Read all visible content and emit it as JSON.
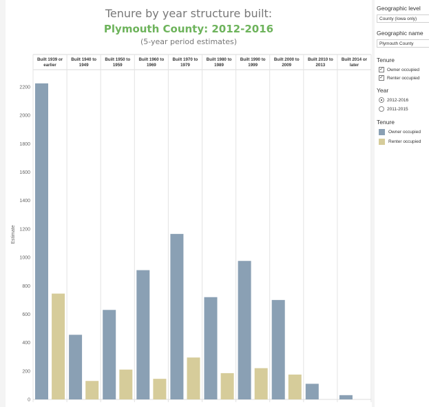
{
  "titles": {
    "main": "Tenure by year structure built:",
    "county": "Plymouth County: 2012-2016",
    "note": "(5-year period estimates)"
  },
  "chart_data": {
    "type": "bar",
    "categories": [
      [
        "Built 1939 or",
        "earlier"
      ],
      [
        "Built 1940 to",
        "1949"
      ],
      [
        "Built 1950 to",
        "1959"
      ],
      [
        "Built 1960 to",
        "1969"
      ],
      [
        "Built 1970 to",
        "1979"
      ],
      [
        "Built 1980 to",
        "1989"
      ],
      [
        "Built 1990 to",
        "1999"
      ],
      [
        "Built 2000 to",
        "2009"
      ],
      [
        "Built 2010 to",
        "2013"
      ],
      [
        "Built 2014 or",
        "later"
      ]
    ],
    "series": [
      {
        "name": "Owner occupied",
        "color": "#8aa0b4",
        "values": [
          2225,
          455,
          630,
          910,
          1165,
          720,
          975,
          700,
          110,
          30
        ]
      },
      {
        "name": "Renter occupied",
        "color": "#d6cc9a",
        "values": [
          745,
          130,
          210,
          145,
          295,
          185,
          220,
          175,
          0,
          0
        ]
      }
    ],
    "ylabel": "Estimate",
    "ylim": [
      0,
      2300
    ],
    "yticks": [
      0,
      200,
      400,
      600,
      800,
      1000,
      1200,
      1400,
      1600,
      1800,
      2000,
      2200
    ],
    "grid": false
  },
  "filters": {
    "geo_level_label": "Geographic level",
    "geo_level_value": "County (Iowa only)",
    "geo_name_label": "Geographic name",
    "geo_name_value": "Plymouth County",
    "tenure_label": "Tenure",
    "tenure_options": [
      "Owner occupied",
      "Renter occupied"
    ],
    "check_mark": "✓",
    "year_label": "Year",
    "year_options": [
      "2012-2016",
      "2011-2015"
    ]
  },
  "legend": {
    "title": "Tenure",
    "items": [
      "Owner occupied",
      "Renter occupied"
    ]
  }
}
